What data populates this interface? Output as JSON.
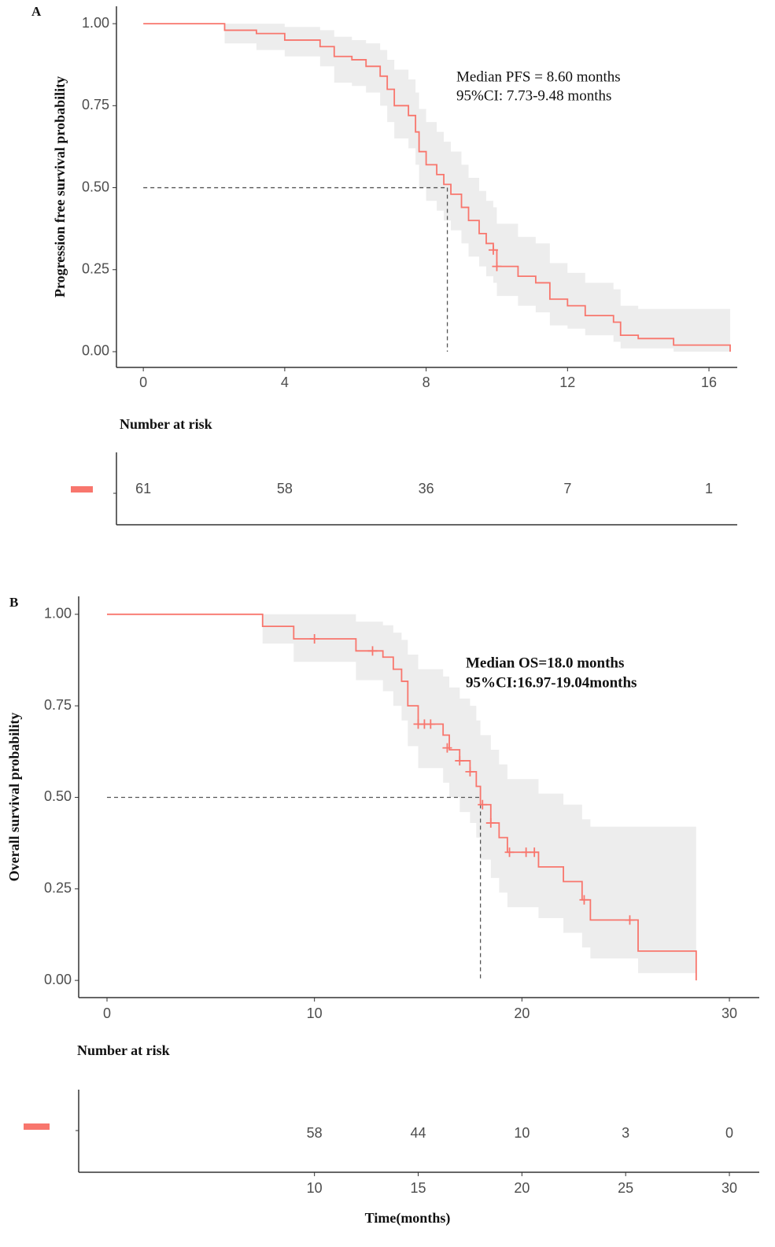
{
  "chart_data": [
    {
      "type": "km",
      "panel_label": "A",
      "ylabel": "Progression free survival probability",
      "color": "#f8766d",
      "ci_color": "#ebebeb",
      "x": [
        0,
        2.3,
        3.2,
        4.0,
        5.0,
        5.4,
        5.9,
        6.3,
        6.7,
        6.9,
        7.1,
        7.5,
        7.7,
        7.8,
        8.0,
        8.3,
        8.5,
        8.7,
        9.0,
        9.2,
        9.5,
        9.7,
        9.9,
        10.0,
        10.6,
        11.1,
        11.5,
        12.0,
        12.5,
        13.3,
        13.5,
        14.0,
        15.0,
        16.6
      ],
      "values": [
        1.0,
        0.98,
        0.97,
        0.95,
        0.93,
        0.9,
        0.89,
        0.87,
        0.84,
        0.8,
        0.75,
        0.72,
        0.67,
        0.61,
        0.57,
        0.54,
        0.51,
        0.48,
        0.44,
        0.4,
        0.36,
        0.33,
        0.31,
        0.26,
        0.23,
        0.21,
        0.16,
        0.14,
        0.11,
        0.09,
        0.05,
        0.04,
        0.02,
        0.0
      ],
      "ci_upper": [
        1.0,
        1.0,
        1.0,
        0.99,
        0.98,
        0.96,
        0.95,
        0.94,
        0.92,
        0.89,
        0.86,
        0.83,
        0.79,
        0.74,
        0.7,
        0.67,
        0.64,
        0.61,
        0.57,
        0.53,
        0.49,
        0.46,
        0.44,
        0.39,
        0.35,
        0.33,
        0.27,
        0.24,
        0.21,
        0.19,
        0.14,
        0.13,
        0.13,
        0.13
      ],
      "ci_lower": [
        1.0,
        0.94,
        0.92,
        0.9,
        0.87,
        0.82,
        0.81,
        0.79,
        0.75,
        0.7,
        0.65,
        0.62,
        0.57,
        0.5,
        0.46,
        0.43,
        0.4,
        0.37,
        0.33,
        0.29,
        0.26,
        0.23,
        0.21,
        0.17,
        0.14,
        0.12,
        0.08,
        0.07,
        0.05,
        0.03,
        0.01,
        0.01,
        0.0,
        0.0
      ],
      "censor_x": [
        9.9,
        10.0
      ],
      "censor_values": [
        0.31,
        0.26
      ],
      "median": 8.6,
      "median_survival": 0.5,
      "annotations": [
        "Median PFS = 8.60 months",
        "95%CI:   7.73-9.48 months"
      ],
      "xlim": [
        -0.76,
        16.8
      ],
      "ylim": [
        -0.048,
        1.053
      ],
      "xticks": [
        0,
        4,
        8,
        12,
        16
      ],
      "yticks": [
        {
          "value": 0,
          "label": "0.00"
        },
        {
          "value": 0.25,
          "label": "0.25"
        },
        {
          "value": 0.5,
          "label": "0.50"
        },
        {
          "value": 0.75,
          "label": "0.75"
        },
        {
          "value": 1,
          "label": "1.00"
        }
      ],
      "risk_table": {
        "title": "Number at risk",
        "times": [
          0,
          4,
          8,
          12,
          16
        ],
        "counts": [
          61,
          58,
          36,
          7,
          1
        ]
      }
    },
    {
      "type": "km",
      "panel_label": "B",
      "ylabel": "Overall survival probability",
      "xlabel": "Time(months)",
      "color": "#f8766d",
      "ci_color": "#ebebeb",
      "x": [
        0,
        7.5,
        9.0,
        12.0,
        13.3,
        13.8,
        14.2,
        14.5,
        15.0,
        16.2,
        16.5,
        17.0,
        17.5,
        17.8,
        18.0,
        18.5,
        18.9,
        19.3,
        20.8,
        22.0,
        22.9,
        23.3,
        25.6,
        28.4
      ],
      "values": [
        1.0,
        0.967,
        0.933,
        0.9,
        0.883,
        0.85,
        0.817,
        0.75,
        0.7,
        0.67,
        0.63,
        0.6,
        0.57,
        0.53,
        0.48,
        0.43,
        0.39,
        0.35,
        0.31,
        0.27,
        0.22,
        0.165,
        0.08,
        0.0
      ],
      "ci_upper": [
        1.0,
        1.0,
        1.0,
        0.98,
        0.97,
        0.95,
        0.93,
        0.89,
        0.85,
        0.83,
        0.8,
        0.77,
        0.75,
        0.71,
        0.67,
        0.63,
        0.59,
        0.55,
        0.51,
        0.48,
        0.44,
        0.42,
        0.42,
        0.42
      ],
      "ci_lower": [
        1.0,
        0.92,
        0.87,
        0.82,
        0.79,
        0.75,
        0.71,
        0.64,
        0.58,
        0.54,
        0.5,
        0.46,
        0.43,
        0.39,
        0.33,
        0.28,
        0.24,
        0.2,
        0.17,
        0.13,
        0.09,
        0.06,
        0.02,
        0.02
      ],
      "censor_x": [
        10.0,
        12.8,
        15.0,
        15.3,
        15.6,
        16.4,
        17.0,
        17.5,
        18.1,
        18.5,
        19.4,
        20.2,
        20.6,
        23.0,
        25.2
      ],
      "censor_values": [
        0.933,
        0.9,
        0.7,
        0.7,
        0.7,
        0.635,
        0.6,
        0.57,
        0.48,
        0.43,
        0.35,
        0.35,
        0.35,
        0.22,
        0.165
      ],
      "median": 18.0,
      "median_survival": 0.5,
      "annotations": [
        "Median OS=18.0  months",
        "95%CI:16.97-19.04months"
      ],
      "xlim": [
        -1.365,
        31.44
      ],
      "ylim": [
        -0.047,
        1.049
      ],
      "xticks": [
        0,
        10,
        20,
        30
      ],
      "yticks": [
        {
          "value": 0,
          "label": "0.00"
        },
        {
          "value": 0.25,
          "label": "0.25"
        },
        {
          "value": 0.5,
          "label": "0.50"
        },
        {
          "value": 0.75,
          "label": "0.75"
        },
        {
          "value": 1,
          "label": "1.00"
        }
      ],
      "risk_table": {
        "title": "Number at risk",
        "times": [
          10,
          15,
          20,
          25,
          30
        ],
        "counts": [
          58,
          44,
          10,
          3,
          0
        ]
      }
    }
  ]
}
